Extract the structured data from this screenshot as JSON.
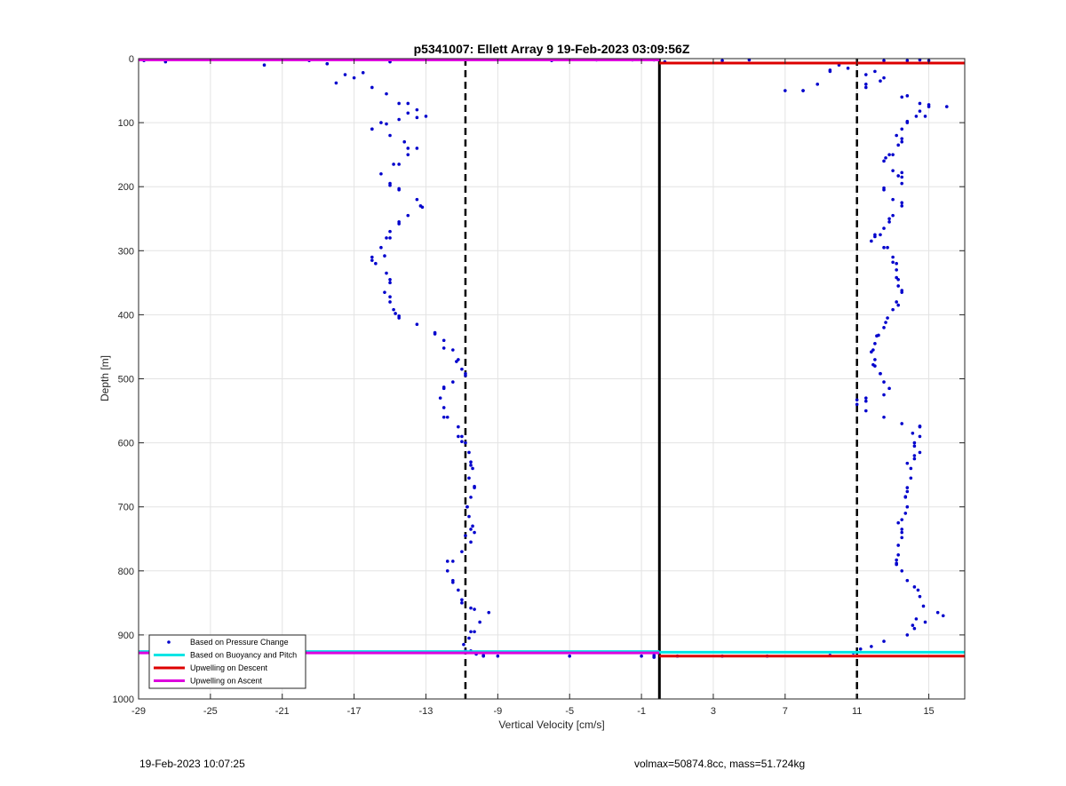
{
  "chart_data": {
    "type": "scatter",
    "title": "p5341007: Ellett Array 9 19-Feb-2023 03:09:56Z",
    "xlabel": "Vertical Velocity [cm/s]",
    "ylabel": "Depth [m]",
    "xlim": [
      -29,
      17
    ],
    "ylim": [
      0,
      1000
    ],
    "y_reversed": true,
    "grid": true,
    "x_ticks": [
      -29,
      -25,
      -21,
      -17,
      -13,
      -9,
      -5,
      -1,
      3,
      7,
      11,
      15
    ],
    "y_ticks": [
      0,
      100,
      200,
      300,
      400,
      500,
      600,
      700,
      800,
      900,
      1000
    ],
    "legend_position": "bottom-left",
    "legend": [
      {
        "label": "Based on Pressure Change",
        "color": "#0000cc",
        "kind": "marker"
      },
      {
        "label": "Based on Buoyancy and Pitch",
        "color": "#00e5e5",
        "kind": "line"
      },
      {
        "label": "Upwelling on Descent",
        "color": "#dd0000",
        "kind": "line"
      },
      {
        "label": "Upwelling on Ascent",
        "color": "#dd00dd",
        "kind": "line"
      }
    ],
    "vertical_lines": [
      {
        "x": -10.8,
        "style": "dashed",
        "color": "#000000"
      },
      {
        "x": 0,
        "style": "solid",
        "color": "#000000"
      },
      {
        "x": 11,
        "style": "dashed",
        "color": "#000000"
      }
    ],
    "horizontal_segments": [
      {
        "y": 2,
        "x0": -29,
        "x1": 0,
        "color": "#dd00dd"
      },
      {
        "y": 7,
        "x0": 0,
        "x1": 17,
        "color": "#dd0000"
      },
      {
        "y": 926,
        "x0": -29,
        "x1": 0,
        "color": "#00e5e5"
      },
      {
        "y": 928,
        "x0": -29,
        "x1": 0,
        "color": "#dd00dd"
      },
      {
        "y": 927,
        "x0": 0,
        "x1": 17,
        "color": "#00e5e5"
      },
      {
        "y": 933,
        "x0": 0,
        "x1": 17,
        "color": "#dd0000"
      }
    ],
    "series": [
      {
        "name": "Based on Pressure Change (ascent)",
        "points": [
          [
            -28.7,
            2
          ],
          [
            -27.5,
            5
          ],
          [
            -22,
            10
          ],
          [
            -19.5,
            3
          ],
          [
            -15,
            5
          ],
          [
            -9,
            2
          ],
          [
            -6,
            2
          ],
          [
            -3.5,
            2
          ],
          [
            -1.5,
            2
          ],
          [
            -18.5,
            8
          ],
          [
            -17.5,
            25
          ],
          [
            -18,
            38
          ],
          [
            -17,
            30
          ],
          [
            -16,
            45
          ],
          [
            -15.2,
            55
          ],
          [
            -14.5,
            70
          ],
          [
            -13.5,
            80
          ],
          [
            -13,
            90
          ],
          [
            -14.5,
            95
          ],
          [
            -15.5,
            100
          ],
          [
            -16,
            110
          ],
          [
            -15,
            120
          ],
          [
            -14.2,
            130
          ],
          [
            -13.5,
            140
          ],
          [
            -14,
            150
          ],
          [
            -14.8,
            165
          ],
          [
            -15.5,
            180
          ],
          [
            -15,
            195
          ],
          [
            -14.5,
            205
          ],
          [
            -13.5,
            220
          ],
          [
            -13.2,
            232
          ],
          [
            -14,
            245
          ],
          [
            -14.5,
            258
          ],
          [
            -15,
            270
          ],
          [
            -15.2,
            280
          ],
          [
            -15.5,
            295
          ],
          [
            -16,
            310
          ],
          [
            -15.8,
            320
          ],
          [
            -15.2,
            335
          ],
          [
            -15,
            350
          ],
          [
            -15.3,
            365
          ],
          [
            -15,
            380
          ],
          [
            -14.8,
            392
          ],
          [
            -14.5,
            402
          ],
          [
            -13.5,
            415
          ],
          [
            -12.5,
            428
          ],
          [
            -12,
            440
          ],
          [
            -11.5,
            455
          ],
          [
            -11.2,
            470
          ],
          [
            -11,
            485
          ],
          [
            -10.8,
            495
          ],
          [
            -11.5,
            505
          ],
          [
            -12,
            515
          ],
          [
            -12.2,
            530
          ],
          [
            -12,
            545
          ],
          [
            -11.8,
            560
          ],
          [
            -11.2,
            575
          ],
          [
            -11,
            590
          ],
          [
            -10.8,
            600
          ],
          [
            -10.6,
            615
          ],
          [
            -10.5,
            630
          ],
          [
            -10.4,
            640
          ],
          [
            -10.6,
            655
          ],
          [
            -10.3,
            670
          ],
          [
            -10.5,
            685
          ],
          [
            -10.7,
            700
          ],
          [
            -10.6,
            715
          ],
          [
            -10.4,
            730
          ],
          [
            -10.3,
            740
          ],
          [
            -10.5,
            755
          ],
          [
            -11,
            770
          ],
          [
            -11.5,
            785
          ],
          [
            -11.8,
            800
          ],
          [
            -11.5,
            815
          ],
          [
            -11.2,
            830
          ],
          [
            -11,
            845
          ],
          [
            -10.5,
            858
          ],
          [
            -9.5,
            865
          ],
          [
            -10,
            880
          ],
          [
            -10.3,
            895
          ],
          [
            -10.6,
            905
          ],
          [
            -10.9,
            915
          ],
          [
            -10.5,
            925
          ],
          [
            -9.8,
            932
          ],
          [
            -9,
            933
          ],
          [
            -5,
            933
          ],
          [
            -1,
            933
          ],
          [
            -0.3,
            934
          ]
        ]
      },
      {
        "name": "Based on Pressure Change (descent)",
        "points": [
          [
            0.3,
            5
          ],
          [
            3.5,
            3
          ],
          [
            5,
            2
          ],
          [
            12.5,
            3
          ],
          [
            14.5,
            2
          ],
          [
            15,
            3
          ],
          [
            7,
            50
          ],
          [
            8,
            50
          ],
          [
            8.8,
            40
          ],
          [
            9.5,
            20
          ],
          [
            10.5,
            15
          ],
          [
            12,
            20
          ],
          [
            12.5,
            30
          ],
          [
            11.5,
            45
          ],
          [
            13.5,
            60
          ],
          [
            14.5,
            70
          ],
          [
            15,
            75
          ],
          [
            16,
            75
          ],
          [
            14.8,
            90
          ],
          [
            13.8,
            100
          ],
          [
            13.5,
            110
          ],
          [
            13.2,
            120
          ],
          [
            13.3,
            135
          ],
          [
            12.8,
            150
          ],
          [
            12.5,
            160
          ],
          [
            13,
            175
          ],
          [
            13.5,
            185
          ],
          [
            13.5,
            195
          ],
          [
            12.5,
            205
          ],
          [
            13,
            220
          ],
          [
            13.5,
            230
          ],
          [
            13,
            245
          ],
          [
            12.8,
            255
          ],
          [
            12.5,
            265
          ],
          [
            12,
            275
          ],
          [
            11.8,
            285
          ],
          [
            12.5,
            295
          ],
          [
            13,
            310
          ],
          [
            13.2,
            320
          ],
          [
            13.2,
            330
          ],
          [
            13.3,
            345
          ],
          [
            13.3,
            355
          ],
          [
            13.5,
            365
          ],
          [
            13.2,
            380
          ],
          [
            13,
            392
          ],
          [
            12.7,
            405
          ],
          [
            12.5,
            420
          ],
          [
            12.2,
            432
          ],
          [
            12,
            445
          ],
          [
            11.8,
            458
          ],
          [
            12,
            470
          ],
          [
            12,
            480
          ],
          [
            12.3,
            492
          ],
          [
            12.5,
            505
          ],
          [
            12.8,
            515
          ],
          [
            12.5,
            525
          ],
          [
            11.5,
            535
          ],
          [
            11,
            540
          ],
          [
            11.5,
            550
          ],
          [
            12.5,
            560
          ],
          [
            13.5,
            570
          ],
          [
            14.5,
            575
          ],
          [
            14.5,
            590
          ],
          [
            14.2,
            605
          ],
          [
            14.5,
            615
          ],
          [
            14.2,
            625
          ],
          [
            14,
            640
          ],
          [
            14,
            655
          ],
          [
            13.8,
            670
          ],
          [
            13.7,
            685
          ],
          [
            13.8,
            700
          ],
          [
            13.7,
            710
          ],
          [
            13.5,
            720
          ],
          [
            13.5,
            735
          ],
          [
            13.5,
            748
          ],
          [
            13.3,
            760
          ],
          [
            13.3,
            775
          ],
          [
            13.2,
            790
          ],
          [
            13.5,
            800
          ],
          [
            13.8,
            815
          ],
          [
            14.2,
            825
          ],
          [
            14.5,
            840
          ],
          [
            14.7,
            855
          ],
          [
            15.5,
            865
          ],
          [
            15.8,
            870
          ],
          [
            14.8,
            880
          ],
          [
            14.2,
            890
          ],
          [
            13.8,
            900
          ],
          [
            12.5,
            910
          ],
          [
            11.8,
            918
          ],
          [
            11.2,
            922
          ],
          [
            10.8,
            928
          ],
          [
            9.5,
            932
          ],
          [
            6,
            933
          ],
          [
            3.5,
            933
          ],
          [
            1,
            933
          ]
        ]
      },
      {
        "name": "Based on Buoyancy and Pitch (ascent)",
        "points": [
          [
            -28.7,
            3
          ],
          [
            -18.5,
            8
          ],
          [
            -6,
            3
          ],
          [
            -0.3,
            2
          ],
          [
            -16.5,
            22
          ],
          [
            -14,
            70
          ],
          [
            -14,
            85
          ],
          [
            -13.5,
            92
          ],
          [
            -16,
            110
          ],
          [
            -15.2,
            102
          ],
          [
            -14,
            140
          ],
          [
            -14.5,
            165
          ],
          [
            -15,
            198
          ],
          [
            -14.5,
            203
          ],
          [
            -13.3,
            230
          ],
          [
            -14.5,
            255
          ],
          [
            -15,
            280
          ],
          [
            -15.3,
            308
          ],
          [
            -16,
            315
          ],
          [
            -15,
            345
          ],
          [
            -15,
            372
          ],
          [
            -14.7,
            398
          ],
          [
            -14.5,
            405
          ],
          [
            -12.5,
            430
          ],
          [
            -12,
            452
          ],
          [
            -11.3,
            473
          ],
          [
            -10.8,
            492
          ],
          [
            -12,
            513
          ],
          [
            -12,
            560
          ],
          [
            -11.2,
            590
          ],
          [
            -11,
            598
          ],
          [
            -10.5,
            635
          ],
          [
            -10.3,
            668
          ],
          [
            -10.7,
            700
          ],
          [
            -10.5,
            735
          ],
          [
            -10.8,
            745
          ],
          [
            -11.8,
            785
          ],
          [
            -11.5,
            818
          ],
          [
            -11,
            850
          ],
          [
            -10.3,
            860
          ],
          [
            -10.5,
            895
          ],
          [
            -10.8,
            925
          ],
          [
            -10.2,
            930
          ],
          [
            -9.8,
            933
          ],
          [
            -0.3,
            935
          ]
        ]
      },
      {
        "name": "Based on Buoyancy and Pitch (descent)",
        "points": [
          [
            13.8,
            3
          ],
          [
            10,
            10
          ],
          [
            9.5,
            18
          ],
          [
            8,
            50
          ],
          [
            11.5,
            25
          ],
          [
            11.5,
            40
          ],
          [
            12.3,
            35
          ],
          [
            13.8,
            58
          ],
          [
            15,
            72
          ],
          [
            14.5,
            82
          ],
          [
            14.3,
            90
          ],
          [
            13.8,
            98
          ],
          [
            13.5,
            125
          ],
          [
            13.5,
            130
          ],
          [
            13,
            150
          ],
          [
            12.6,
            155
          ],
          [
            13.3,
            183
          ],
          [
            13.5,
            178
          ],
          [
            12.5,
            202
          ],
          [
            13.5,
            225
          ],
          [
            12.8,
            250
          ],
          [
            12.3,
            275
          ],
          [
            12,
            278
          ],
          [
            12.7,
            295
          ],
          [
            13,
            318
          ],
          [
            13.2,
            342
          ],
          [
            13.5,
            362
          ],
          [
            13.3,
            385
          ],
          [
            12.6,
            412
          ],
          [
            12.1,
            433
          ],
          [
            11.9,
            455
          ],
          [
            11.9,
            478
          ],
          [
            12.3,
            492
          ],
          [
            11,
            533
          ],
          [
            11.5,
            530
          ],
          [
            14.5,
            574
          ],
          [
            14.1,
            585
          ],
          [
            14.2,
            600
          ],
          [
            14.2,
            620
          ],
          [
            13.8,
            632
          ],
          [
            13.8,
            676
          ],
          [
            13.7,
            684
          ],
          [
            13.3,
            725
          ],
          [
            13.5,
            740
          ],
          [
            13.2,
            783
          ],
          [
            13.2,
            788
          ],
          [
            14.4,
            830
          ],
          [
            14.3,
            875
          ],
          [
            14.1,
            885
          ],
          [
            -0.3,
            932
          ]
        ]
      }
    ]
  },
  "footer": {
    "left": "19-Feb-2023 10:07:25",
    "right": "volmax=50874.8cc, mass=51.724kg"
  }
}
